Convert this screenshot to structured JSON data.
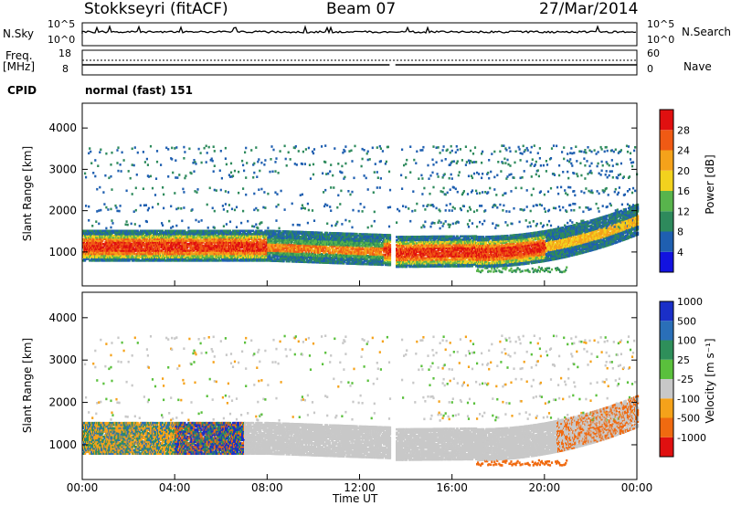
{
  "header": {
    "station": "Stokkseyri (fitACF)",
    "beam": "Beam 07",
    "date": "27/Mar/2014"
  },
  "strips": {
    "nsky_label": "N.Sky",
    "nsky_ticks": [
      "10^5",
      "10^0"
    ],
    "nsearch_label": "N.Search",
    "nsearch_ticks": [
      "10^5",
      "10^0"
    ],
    "freq_label": "Freq.",
    "freq_unit": "[MHz]",
    "freq_ticks": [
      "18",
      "8"
    ],
    "nave_label": "Nave",
    "nave_ticks": [
      "60",
      "0"
    ],
    "cpid_label": "CPID",
    "cpid_value": "normal (fast) 151"
  },
  "chart_data": [
    {
      "type": "heatmap",
      "panel": "power",
      "ylabel": "Slant Range [km]",
      "yticks": [
        1000,
        2000,
        3000,
        4000
      ],
      "ylim": [
        180,
        4600
      ],
      "x_ticks": [
        "00:00",
        "04:00",
        "08:00",
        "12:00",
        "16:00",
        "20:00",
        "00:00"
      ],
      "xlim_hours": [
        0,
        24
      ],
      "colorbar": {
        "label": "Power [dB]",
        "ticks": [
          "4",
          "8",
          "12",
          "16",
          "20",
          "24",
          "28"
        ],
        "range": [
          0,
          30
        ],
        "colors": [
          "#1212e0",
          "#1f5fb0",
          "#2e8a5c",
          "#58b44c",
          "#f2d21e",
          "#f5a21a",
          "#f05a14",
          "#e01010"
        ]
      }
    },
    {
      "type": "heatmap",
      "panel": "velocity",
      "ylabel": "Slant Range [km]",
      "yticks": [
        1000,
        2000,
        3000,
        4000
      ],
      "ylim": [
        180,
        4600
      ],
      "x_ticks": [
        "00:00",
        "04:00",
        "08:00",
        "12:00",
        "16:00",
        "20:00",
        "00:00"
      ],
      "xlabel": "Time UT",
      "colorbar": {
        "label": "Velocity [m s⁻¹]",
        "ticks": [
          "1000",
          "500",
          "100",
          "25",
          "-25",
          "-100",
          "-500",
          "-1000"
        ],
        "colors": [
          "#1a2fc8",
          "#2a6fb8",
          "#2e8f5a",
          "#5ac03c",
          "#c8c8c8",
          "#f5a21a",
          "#f06a10",
          "#e01010"
        ]
      }
    }
  ],
  "colors": {
    "echo_band": "#d84010",
    "ground_scatter": "#c0c0c0"
  }
}
